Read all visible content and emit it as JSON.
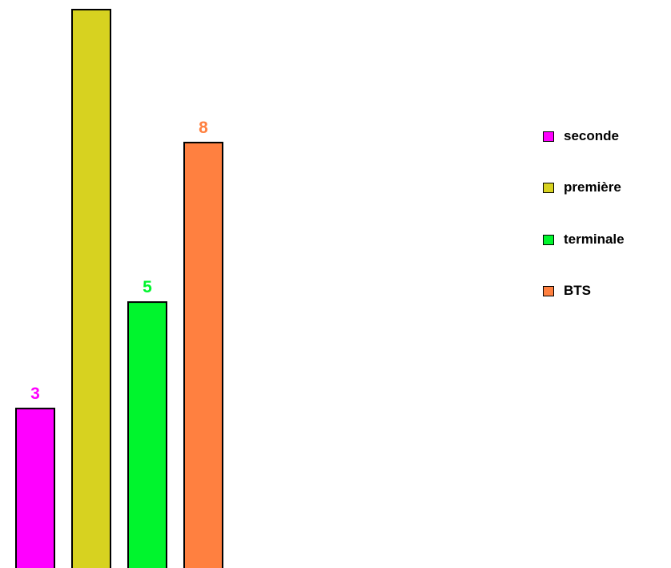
{
  "chart_data": {
    "type": "bar",
    "categories": [
      "seconde",
      "première",
      "terminale",
      "BTS"
    ],
    "values": [
      3,
      10.5,
      5,
      8
    ],
    "shown_labels": [
      "3",
      "",
      "5",
      "8"
    ],
    "colors": [
      "#ff00ff",
      "#d7d220",
      "#00f52d",
      "#ff8040"
    ],
    "legend": {
      "position": "right",
      "items": [
        {
          "label": "seconde",
          "color": "#ff00ff"
        },
        {
          "label": "première",
          "color": "#d7d220"
        },
        {
          "label": "terminale",
          "color": "#00f52d"
        },
        {
          "label": "BTS",
          "color": "#ff8040"
        }
      ]
    },
    "title": "",
    "xlabel": "",
    "ylabel": "",
    "ylim": [
      0,
      10.5
    ],
    "grid": false
  }
}
